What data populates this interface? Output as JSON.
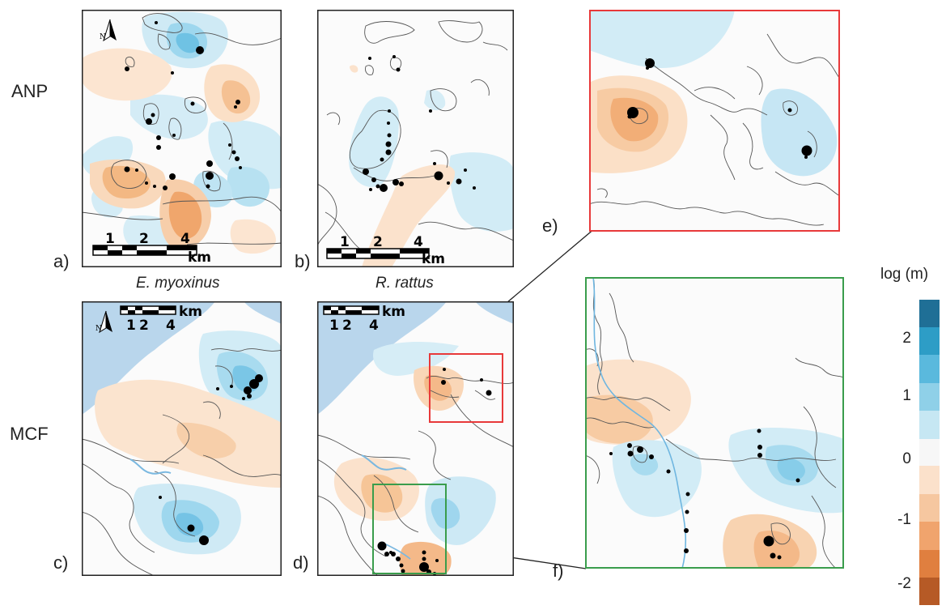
{
  "row_labels": {
    "top": "ANP",
    "bottom": "MCF"
  },
  "panel_letters": {
    "a": "a)",
    "b": "b)",
    "c": "c)",
    "d": "d)",
    "e": "e)",
    "f": "f)"
  },
  "species": {
    "left": "E. myoxinus",
    "right": "R. rattus"
  },
  "scale_bar": {
    "ticks": [
      "1",
      "2",
      "4"
    ],
    "unit": "km"
  },
  "north_arrow": {
    "label": "N"
  },
  "legend": {
    "title": "log (m)",
    "ticks": [
      "2",
      "1",
      "0",
      "-1",
      "-2"
    ],
    "colors": [
      "#1f6f96",
      "#2d9dc6",
      "#5ab9dd",
      "#8fd0e8",
      "#c6e7f3",
      "#f7f7f7",
      "#fbe1cb",
      "#f6c7a0",
      "#f0a46d",
      "#e07f3f",
      "#b65a26"
    ]
  },
  "colors": {
    "water": "#b9d6ec",
    "blue_light": "#d4ecf6",
    "blue_mid": "#aedcef",
    "blue_dark": "#79c6e6",
    "orange_light": "#fbe4cf",
    "orange_mid": "#f6c59a",
    "orange_dark": "#ee9f63",
    "red_frame": "#e8393a",
    "green_frame": "#3a9d4c"
  }
}
